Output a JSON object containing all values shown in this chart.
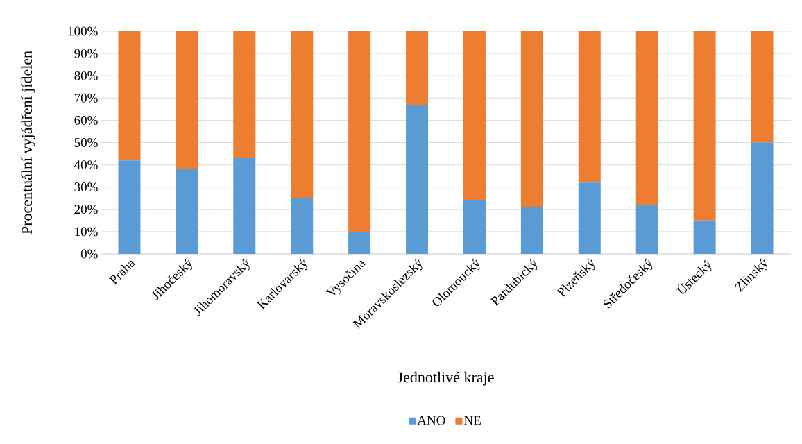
{
  "chart_data": {
    "type": "bar",
    "stacked": true,
    "xlabel": "Jednotlivé kraje",
    "ylabel": "Procentuální vyjádření jídelen",
    "categories": [
      "Praha",
      "Jihočeský",
      "Jihomoravský",
      "Karlovarský",
      "Vysočina",
      "Moravskoslezský",
      "Olomoucký",
      "Pardubický",
      "Plzeňský",
      "Středočeský",
      "Ústecký",
      "Zlínský"
    ],
    "series": [
      {
        "name": "ANO",
        "color": "#5b9bd5",
        "values": [
          42,
          38,
          43,
          25,
          10,
          67,
          24,
          21,
          32,
          22,
          15,
          50
        ]
      },
      {
        "name": "NE",
        "color": "#ed7d31",
        "values": [
          58,
          62,
          57,
          75,
          90,
          33,
          76,
          79,
          68,
          78,
          85,
          50
        ]
      }
    ],
    "ylim": [
      0,
      100
    ],
    "yticks": [
      {
        "value": 0,
        "label": "0%"
      },
      {
        "value": 10,
        "label": "10%"
      },
      {
        "value": 20,
        "label": "20%"
      },
      {
        "value": 30,
        "label": "30%"
      },
      {
        "value": 40,
        "label": "40%"
      },
      {
        "value": 50,
        "label": "50%"
      },
      {
        "value": 60,
        "label": "60%"
      },
      {
        "value": 70,
        "label": "70%"
      },
      {
        "value": 80,
        "label": "80%"
      },
      {
        "value": 90,
        "label": "90%"
      },
      {
        "value": 100,
        "label": "100%"
      }
    ],
    "grid": "y",
    "legend": "bottom"
  }
}
